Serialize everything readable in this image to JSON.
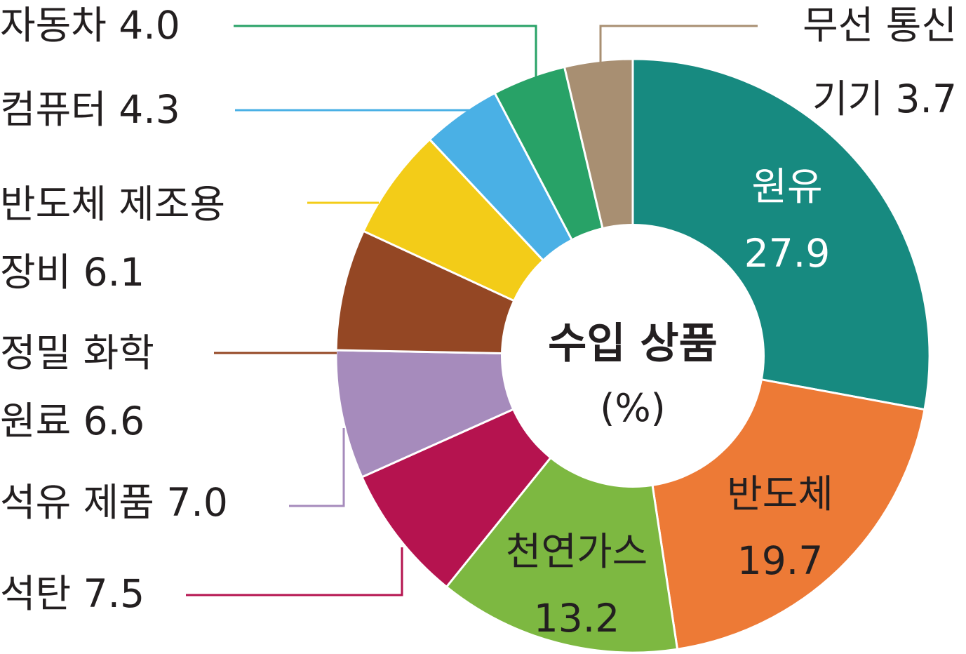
{
  "chart_data": {
    "type": "pie",
    "donut": true,
    "title": "수입 상품",
    "unit": "(%)",
    "slices": [
      {
        "name": "원유",
        "value": 27.9,
        "color": "#178a80",
        "text_color": "#ffffff",
        "label_lines": [
          "원유",
          "27.9"
        ]
      },
      {
        "name": "반도체",
        "value": 19.7,
        "color": "#ed7a36",
        "text_color": "#231f20",
        "label_lines": [
          "반도체",
          "19.7"
        ]
      },
      {
        "name": "천연가스",
        "value": 13.2,
        "color": "#7db841",
        "text_color": "#231f20",
        "label_lines": [
          "천연가스",
          "13.2"
        ]
      },
      {
        "name": "석탄",
        "value": 7.5,
        "color": "#b5134f",
        "text_color": "#231f20",
        "label_lines": [
          "석탄 7.5"
        ]
      },
      {
        "name": "석유 제품",
        "value": 7.0,
        "color": "#a68bbc",
        "text_color": "#231f20",
        "label_lines": [
          "석유 제품 7.0"
        ]
      },
      {
        "name": "정밀 화학 원료",
        "value": 6.6,
        "color": "#944724",
        "text_color": "#231f20",
        "label_lines": [
          "정밀 화학",
          "원료 6.6"
        ]
      },
      {
        "name": "반도체 제조용 장비",
        "value": 6.1,
        "color": "#f3cc18",
        "text_color": "#231f20",
        "label_lines": [
          "반도체 제조용",
          "장비 6.1"
        ]
      },
      {
        "name": "컴퓨터",
        "value": 4.3,
        "color": "#4ab0e5",
        "text_color": "#231f20",
        "label_lines": [
          "컴퓨터 4.3"
        ]
      },
      {
        "name": "자동차",
        "value": 4.0,
        "color": "#28a267",
        "text_color": "#231f20",
        "label_lines": [
          "자동차 4.0"
        ]
      },
      {
        "name": "무선 통신 기기",
        "value": 3.7,
        "color": "#a88f72",
        "text_color": "#231f20",
        "label_lines": [
          "무선 통신",
          "기기 3.7"
        ]
      }
    ]
  }
}
